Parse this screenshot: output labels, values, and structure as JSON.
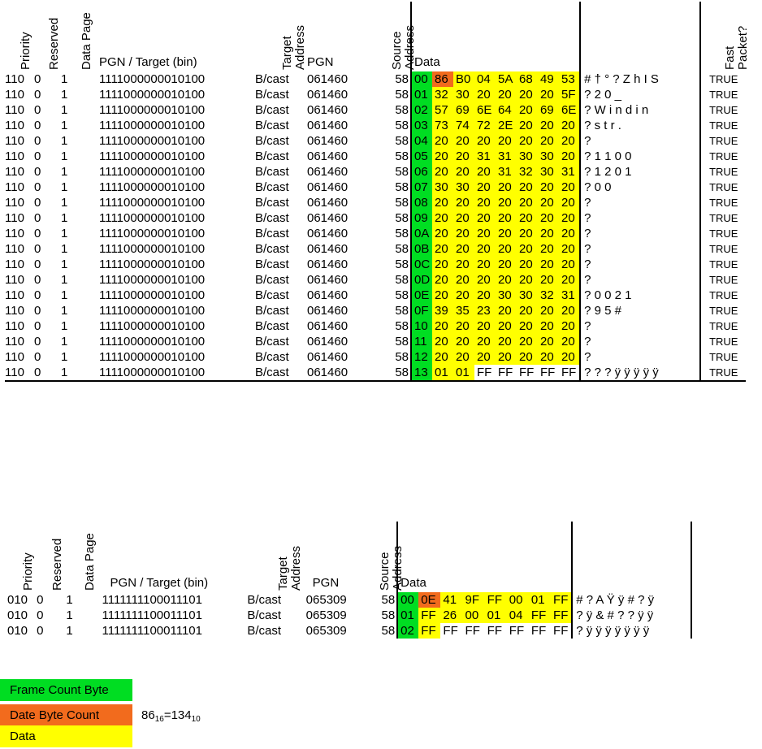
{
  "table1": {
    "headers": {
      "priority": "Priority",
      "reserved": "Reserved",
      "data_page": "Data Page",
      "pgn_target": "PGN / Target (bin)",
      "target_address_1": "Target",
      "target_address_2": "Address",
      "pgn": "PGN",
      "source_address_1": "Source",
      "source_address_2": "Address",
      "data": "Data",
      "fast_packet_1": "Fast",
      "fast_packet_2": "Packet?"
    },
    "rows": [
      {
        "priority": "110",
        "reserved": "0",
        "data_page": "1",
        "pgn_bin": "1111000000010100",
        "target": "B/cast",
        "pgn": "061460",
        "source": "58",
        "bytes": [
          "00",
          "86",
          "B0",
          "04",
          "5A",
          "68",
          "49",
          "53"
        ],
        "ascii": "# † °  ? Z h I S",
        "fast": "TRUE"
      },
      {
        "priority": "110",
        "reserved": "0",
        "data_page": "1",
        "pgn_bin": "1111000000010100",
        "target": "B/cast",
        "pgn": "061460",
        "source": "58",
        "bytes": [
          "01",
          "32",
          "30",
          "20",
          "20",
          "20",
          "20",
          "5F"
        ],
        "ascii": "? 2 0               _",
        "fast": "TRUE"
      },
      {
        "priority": "110",
        "reserved": "0",
        "data_page": "1",
        "pgn_bin": "1111000000010100",
        "target": "B/cast",
        "pgn": "061460",
        "source": "58",
        "bytes": [
          "02",
          "57",
          "69",
          "6E",
          "64",
          "20",
          "69",
          "6E"
        ],
        "ascii": "? W i n d     i   n",
        "fast": "TRUE"
      },
      {
        "priority": "110",
        "reserved": "0",
        "data_page": "1",
        "pgn_bin": "1111000000010100",
        "target": "B/cast",
        "pgn": "061460",
        "source": "58",
        "bytes": [
          "03",
          "73",
          "74",
          "72",
          "2E",
          "20",
          "20",
          "20"
        ],
        "ascii": "? s t r .",
        "fast": "TRUE"
      },
      {
        "priority": "110",
        "reserved": "0",
        "data_page": "1",
        "pgn_bin": "1111000000010100",
        "target": "B/cast",
        "pgn": "061460",
        "source": "58",
        "bytes": [
          "04",
          "20",
          "20",
          "20",
          "20",
          "20",
          "20",
          "20"
        ],
        "ascii": "?",
        "fast": "TRUE"
      },
      {
        "priority": "110",
        "reserved": "0",
        "data_page": "1",
        "pgn_bin": "1111000000010100",
        "target": "B/cast",
        "pgn": "061460",
        "source": "58",
        "bytes": [
          "05",
          "20",
          "20",
          "31",
          "31",
          "30",
          "30",
          "20"
        ],
        "ascii": "?           1  1  0  0",
        "fast": "TRUE"
      },
      {
        "priority": "110",
        "reserved": "0",
        "data_page": "1",
        "pgn_bin": "1111000000010100",
        "target": "B/cast",
        "pgn": "061460",
        "source": "58",
        "bytes": [
          "06",
          "20",
          "20",
          "20",
          "31",
          "32",
          "30",
          "31"
        ],
        "ascii": "?                1  2  0  1",
        "fast": "TRUE"
      },
      {
        "priority": "110",
        "reserved": "0",
        "data_page": "1",
        "pgn_bin": "1111000000010100",
        "target": "B/cast",
        "pgn": "061460",
        "source": "58",
        "bytes": [
          "07",
          "30",
          "30",
          "20",
          "20",
          "20",
          "20",
          "20"
        ],
        "ascii": "? 0  0",
        "fast": "TRUE"
      },
      {
        "priority": "110",
        "reserved": "0",
        "data_page": "1",
        "pgn_bin": "1111000000010100",
        "target": "B/cast",
        "pgn": "061460",
        "source": "58",
        "bytes": [
          "08",
          "20",
          "20",
          "20",
          "20",
          "20",
          "20",
          "20"
        ],
        "ascii": "?",
        "fast": "TRUE"
      },
      {
        "priority": "110",
        "reserved": "0",
        "data_page": "1",
        "pgn_bin": "1111000000010100",
        "target": "B/cast",
        "pgn": "061460",
        "source": "58",
        "bytes": [
          "09",
          "20",
          "20",
          "20",
          "20",
          "20",
          "20",
          "20"
        ],
        "ascii": "?",
        "fast": "TRUE"
      },
      {
        "priority": "110",
        "reserved": "0",
        "data_page": "1",
        "pgn_bin": "1111000000010100",
        "target": "B/cast",
        "pgn": "061460",
        "source": "58",
        "bytes": [
          "0A",
          "20",
          "20",
          "20",
          "20",
          "20",
          "20",
          "20"
        ],
        "ascii": "?",
        "fast": "TRUE"
      },
      {
        "priority": "110",
        "reserved": "0",
        "data_page": "1",
        "pgn_bin": "1111000000010100",
        "target": "B/cast",
        "pgn": "061460",
        "source": "58",
        "bytes": [
          "0B",
          "20",
          "20",
          "20",
          "20",
          "20",
          "20",
          "20"
        ],
        "ascii": "?",
        "fast": "TRUE"
      },
      {
        "priority": "110",
        "reserved": "0",
        "data_page": "1",
        "pgn_bin": "1111000000010100",
        "target": "B/cast",
        "pgn": "061460",
        "source": "58",
        "bytes": [
          "0C",
          "20",
          "20",
          "20",
          "20",
          "20",
          "20",
          "20"
        ],
        "ascii": "?",
        "fast": "TRUE"
      },
      {
        "priority": "110",
        "reserved": "0",
        "data_page": "1",
        "pgn_bin": "1111000000010100",
        "target": "B/cast",
        "pgn": "061460",
        "source": "58",
        "bytes": [
          "0D",
          "20",
          "20",
          "20",
          "20",
          "20",
          "20",
          "20"
        ],
        "ascii": "?",
        "fast": "TRUE"
      },
      {
        "priority": "110",
        "reserved": "0",
        "data_page": "1",
        "pgn_bin": "1111000000010100",
        "target": "B/cast",
        "pgn": "061460",
        "source": "58",
        "bytes": [
          "0E",
          "20",
          "20",
          "20",
          "30",
          "30",
          "32",
          "31"
        ],
        "ascii": "?                0  0  2  1",
        "fast": "TRUE"
      },
      {
        "priority": "110",
        "reserved": "0",
        "data_page": "1",
        "pgn_bin": "1111000000010100",
        "target": "B/cast",
        "pgn": "061460",
        "source": "58",
        "bytes": [
          "0F",
          "39",
          "35",
          "23",
          "20",
          "20",
          "20",
          "20"
        ],
        "ascii": "? 9  5  #",
        "fast": "TRUE"
      },
      {
        "priority": "110",
        "reserved": "0",
        "data_page": "1",
        "pgn_bin": "1111000000010100",
        "target": "B/cast",
        "pgn": "061460",
        "source": "58",
        "bytes": [
          "10",
          "20",
          "20",
          "20",
          "20",
          "20",
          "20",
          "20"
        ],
        "ascii": "?",
        "fast": "TRUE"
      },
      {
        "priority": "110",
        "reserved": "0",
        "data_page": "1",
        "pgn_bin": "1111000000010100",
        "target": "B/cast",
        "pgn": "061460",
        "source": "58",
        "bytes": [
          "11",
          "20",
          "20",
          "20",
          "20",
          "20",
          "20",
          "20"
        ],
        "ascii": "?",
        "fast": "TRUE"
      },
      {
        "priority": "110",
        "reserved": "0",
        "data_page": "1",
        "pgn_bin": "1111000000010100",
        "target": "B/cast",
        "pgn": "061460",
        "source": "58",
        "bytes": [
          "12",
          "20",
          "20",
          "20",
          "20",
          "20",
          "20",
          "20"
        ],
        "ascii": "?",
        "fast": "TRUE"
      },
      {
        "priority": "110",
        "reserved": "0",
        "data_page": "1",
        "pgn_bin": "1111000000010100",
        "target": "B/cast",
        "pgn": "061460",
        "source": "58",
        "bytes": [
          "13",
          "01",
          "01",
          "FF",
          "FF",
          "FF",
          "FF",
          "FF"
        ],
        "ascii": "? ? ? ÿ ÿ ÿ ÿ ÿ",
        "fast": "TRUE"
      }
    ]
  },
  "table2": {
    "headers": {
      "priority": "Priority",
      "reserved": "Reserved",
      "data_page": "Data Page",
      "pgn_target": "PGN / Target (bin)",
      "target_address_1": "Target",
      "target_address_2": "Address",
      "pgn": "PGN",
      "source_address_1": "Source",
      "source_address_2": "Address",
      "data": "Data"
    },
    "rows": [
      {
        "priority": "010",
        "reserved": "0",
        "data_page": "1",
        "pgn_bin": "1111111100011101",
        "target": "B/cast",
        "pgn": "065309",
        "source": "58",
        "bytes": [
          "00",
          "0E",
          "41",
          "9F",
          "FF",
          "00",
          "01",
          "FF"
        ],
        "ascii": "# ? A Ÿ ÿ  # ? ÿ"
      },
      {
        "priority": "010",
        "reserved": "0",
        "data_page": "1",
        "pgn_bin": "1111111100011101",
        "target": "B/cast",
        "pgn": "065309",
        "source": "58",
        "bytes": [
          "01",
          "FF",
          "26",
          "00",
          "01",
          "04",
          "FF",
          "FF"
        ],
        "ascii": "? ÿ & # ? ? ÿ ÿ"
      },
      {
        "priority": "010",
        "reserved": "0",
        "data_page": "1",
        "pgn_bin": "1111111100011101",
        "target": "B/cast",
        "pgn": "065309",
        "source": "58",
        "bytes": [
          "02",
          "FF",
          "FF",
          "FF",
          "FF",
          "FF",
          "FF",
          "FF"
        ],
        "ascii": "? ÿ ÿ ÿ ÿ ÿ ÿ ÿ"
      }
    ]
  },
  "legend": {
    "frame_count": "Frame Count Byte",
    "date_byte_count": "Date Byte Count",
    "data": "Data"
  },
  "equation": {
    "lhs": "86",
    "lhs_base": "16",
    "rhs": "=134",
    "rhs_base": "10"
  },
  "colors": {
    "frame_count": "#00dd22",
    "byte_count": "#f26b1d",
    "data": "#ffff00"
  }
}
